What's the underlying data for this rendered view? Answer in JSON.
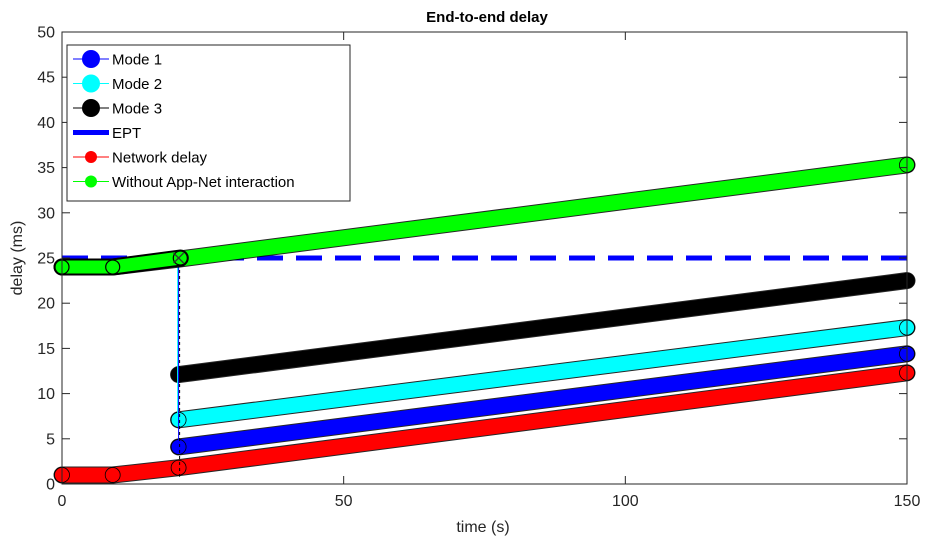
{
  "chart_data": {
    "type": "line",
    "title": "End-to-end delay",
    "xlabel": "time (s)",
    "ylabel": "delay (ms)",
    "xlim": [
      0,
      150
    ],
    "ylim": [
      0,
      50
    ],
    "xticks": [
      0,
      50,
      100,
      150
    ],
    "yticks": [
      0,
      5,
      10,
      15,
      20,
      25,
      30,
      35,
      40,
      45,
      50
    ],
    "legend_position": "top-left",
    "grid": false,
    "series": [
      {
        "name": "Mode 1",
        "color": "#0000ff",
        "style": "thick-marker-line",
        "pre_segment": [
          [
            0,
            24
          ],
          [
            9,
            24
          ],
          [
            21,
            25
          ]
        ],
        "main_segment": [
          [
            20.7,
            4.1
          ],
          [
            150,
            14.4
          ]
        ]
      },
      {
        "name": "Mode 2",
        "color": "#00ffff",
        "style": "thick-marker-line",
        "pre_segment": [
          [
            0,
            24
          ],
          [
            9,
            24
          ],
          [
            21,
            25
          ]
        ],
        "main_segment": [
          [
            20.7,
            7.1
          ],
          [
            150,
            17.3
          ]
        ]
      },
      {
        "name": "Mode 3",
        "color": "#000000",
        "style": "thick-marker-line",
        "pre_segment": [
          [
            0,
            24
          ],
          [
            9,
            24
          ],
          [
            21,
            25
          ]
        ],
        "main_segment": [
          [
            20.7,
            12.1
          ],
          [
            150,
            22.5
          ]
        ]
      },
      {
        "name": "EPT",
        "color": "#0000ff",
        "style": "dashed",
        "points": [
          [
            0,
            25
          ],
          [
            150,
            25
          ]
        ]
      },
      {
        "name": "Network delay",
        "color": "#ff0000",
        "style": "thick-marker-line",
        "points": [
          [
            0,
            1
          ],
          [
            9,
            1
          ],
          [
            20.7,
            1.8
          ],
          [
            150,
            12.3
          ]
        ]
      },
      {
        "name": "Without App-Net interaction",
        "color": "#00ff00",
        "style": "thick-marker-line",
        "points": [
          [
            0,
            24
          ],
          [
            9,
            24
          ],
          [
            21,
            24.9
          ],
          [
            150,
            35.3
          ]
        ]
      }
    ],
    "switch_marker": {
      "x": 20.7,
      "y": 25,
      "symbol": "x"
    }
  }
}
